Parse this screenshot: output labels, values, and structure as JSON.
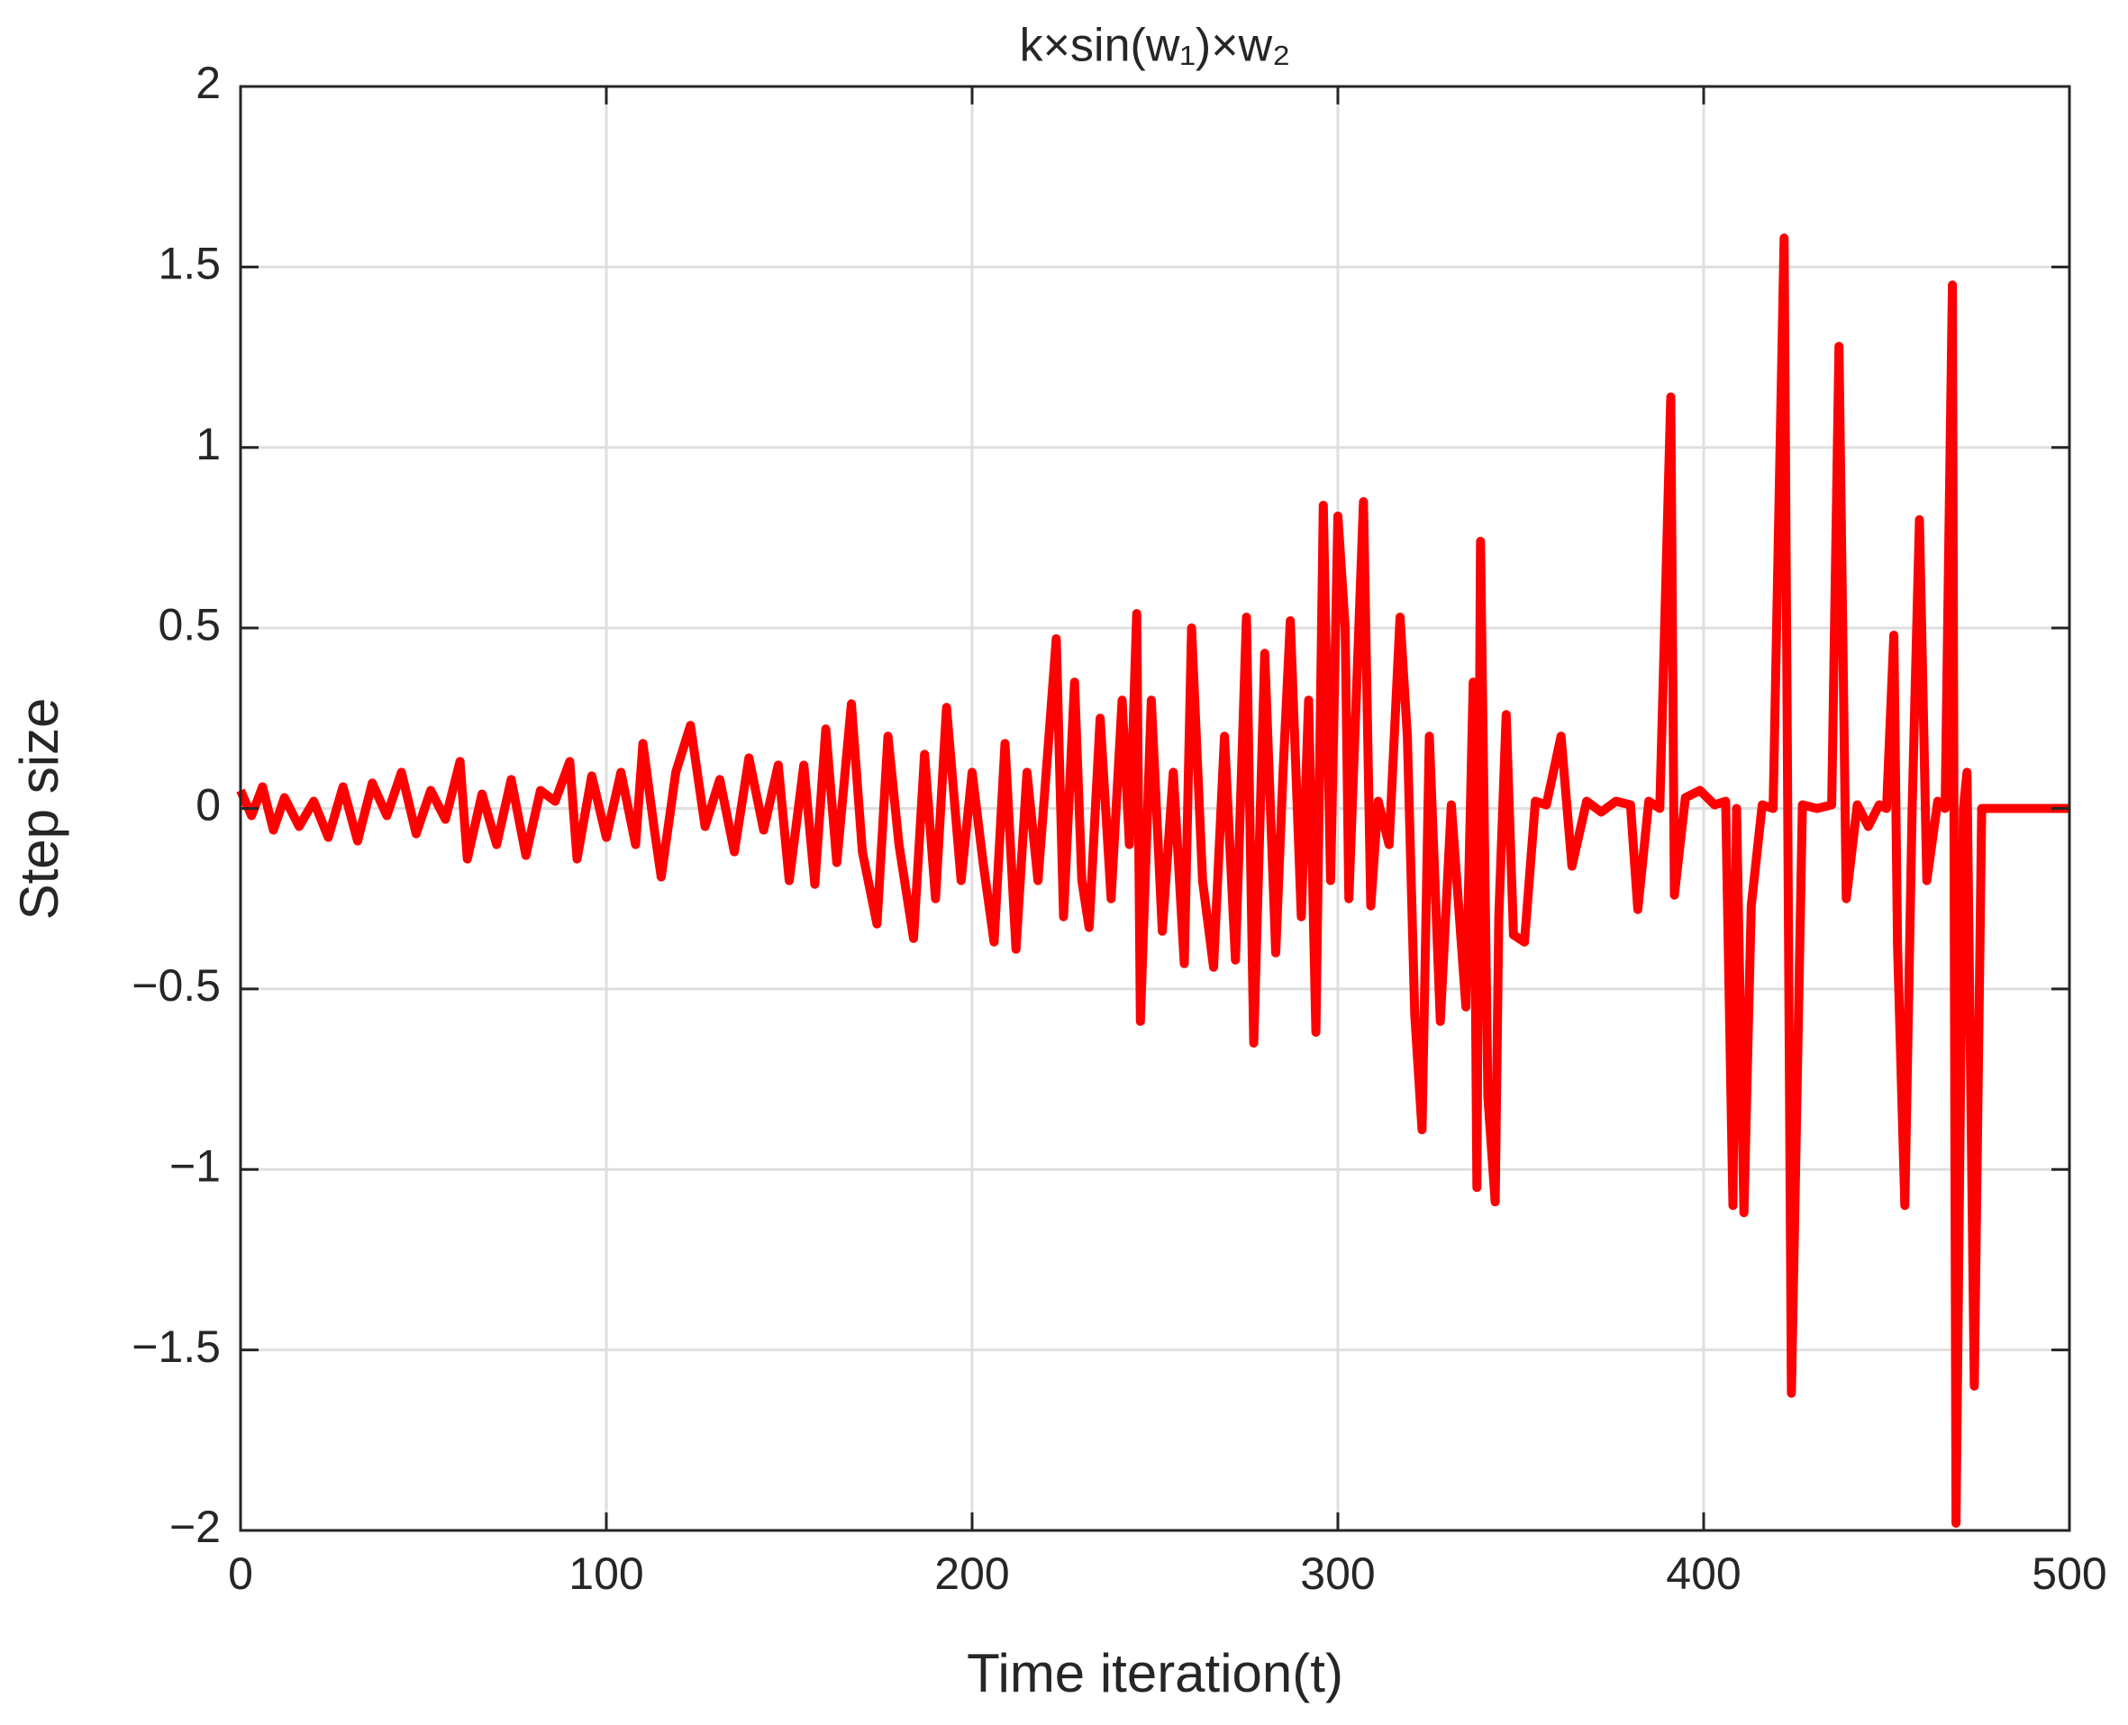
{
  "chart_data": {
    "type": "line",
    "title": "k×sin(w₁)×w₂",
    "x_label": "Time iteration(t)",
    "y_label": "Step size",
    "x": [
      0,
      3,
      6,
      9,
      12,
      16,
      20,
      24,
      28,
      32,
      36,
      40,
      44,
      48,
      52,
      56,
      60,
      62,
      66,
      70,
      74,
      78,
      82,
      86,
      90,
      92,
      96,
      100,
      104,
      108,
      110,
      113,
      115,
      119,
      123,
      127,
      131,
      135,
      139,
      143,
      147,
      150,
      154,
      157,
      160,
      163,
      167,
      170,
      174,
      177,
      180,
      184,
      187,
      190,
      193,
      197,
      200,
      203,
      206,
      209,
      212,
      215,
      218,
      221,
      223,
      225,
      228,
      230,
      232,
      235,
      238,
      241,
      243,
      245,
      246,
      249,
      252,
      255,
      258,
      260,
      263,
      266,
      269,
      272,
      275,
      277,
      280,
      283,
      285,
      287,
      290,
      292,
      294,
      296,
      298,
      300,
      302,
      303,
      305,
      307,
      309,
      311,
      314,
      317,
      319,
      321,
      323,
      325,
      328,
      331,
      335,
      337,
      338,
      339,
      341,
      343,
      344,
      346,
      348,
      351,
      354,
      357,
      361,
      364,
      368,
      372,
      376,
      380,
      382,
      385,
      388,
      391,
      392,
      395,
      399,
      403,
      406,
      408,
      409,
      411,
      413,
      416,
      419,
      422,
      424,
      427,
      431,
      435,
      437,
      439,
      442,
      445,
      448,
      450,
      452,
      453,
      455,
      457,
      459,
      461,
      464,
      466,
      468,
      469,
      471,
      472,
      474,
      476,
      480,
      490,
      500
    ],
    "values": [
      0.05,
      -0.02,
      0.06,
      -0.06,
      0.03,
      -0.05,
      0.02,
      -0.08,
      0.06,
      -0.09,
      0.07,
      -0.02,
      0.1,
      -0.07,
      0.05,
      -0.03,
      0.13,
      -0.14,
      0.04,
      -0.1,
      0.08,
      -0.13,
      0.05,
      0.02,
      0.13,
      -0.14,
      0.09,
      -0.08,
      0.1,
      -0.1,
      0.18,
      -0.05,
      -0.19,
      0.1,
      0.23,
      -0.05,
      0.08,
      -0.12,
      0.14,
      -0.06,
      0.12,
      -0.2,
      0.12,
      -0.21,
      0.22,
      -0.15,
      0.29,
      -0.12,
      -0.32,
      0.2,
      -0.1,
      -0.36,
      0.15,
      -0.25,
      0.28,
      -0.2,
      0.1,
      -0.15,
      -0.37,
      0.18,
      -0.39,
      0.1,
      -0.2,
      0.2,
      0.47,
      -0.3,
      0.35,
      -0.2,
      -0.33,
      0.25,
      -0.25,
      0.3,
      -0.1,
      0.54,
      -0.59,
      0.3,
      -0.34,
      0.1,
      -0.43,
      0.5,
      -0.2,
      -0.44,
      0.2,
      -0.42,
      0.53,
      -0.65,
      0.43,
      -0.4,
      0.1,
      0.52,
      -0.3,
      0.3,
      -0.62,
      0.84,
      -0.2,
      0.81,
      0.5,
      -0.25,
      0.3,
      0.85,
      -0.27,
      0.02,
      -0.1,
      0.53,
      0.2,
      -0.57,
      -0.89,
      0.2,
      -0.59,
      0.01,
      -0.55,
      0.35,
      -1.05,
      0.74,
      -0.8,
      -1.09,
      -0.3,
      0.26,
      -0.35,
      -0.37,
      0.02,
      0.01,
      0.2,
      -0.16,
      0.02,
      -0.01,
      0.02,
      0.01,
      -0.28,
      0.02,
      0,
      1.14,
      -0.24,
      0.03,
      0.05,
      0.01,
      0.02,
      -1.1,
      0,
      -1.12,
      -0.27,
      0.01,
      0,
      1.58,
      -1.62,
      0.01,
      0,
      0.01,
      1.28,
      -0.25,
      0.01,
      -0.05,
      0.01,
      0,
      0.48,
      -0.38,
      -1.1,
      0,
      0.8,
      -0.2,
      0.02,
      0,
      1.45,
      -1.98,
      0,
      0.1,
      -1.6,
      0,
      0,
      0,
      0
    ],
    "color": "#ff0000",
    "xlim": [
      0,
      500
    ],
    "xticks": [
      0,
      100,
      200,
      300,
      400,
      500
    ],
    "ylim": [
      -2,
      2
    ],
    "yticks": [
      {
        "value": -2,
        "label": "−2"
      },
      {
        "value": -1.5,
        "label": "−1.5"
      },
      {
        "value": -1,
        "label": "−1"
      },
      {
        "value": -0.5,
        "label": "−0.5"
      },
      0,
      0.5,
      1,
      1.5,
      2
    ],
    "grid": true
  }
}
